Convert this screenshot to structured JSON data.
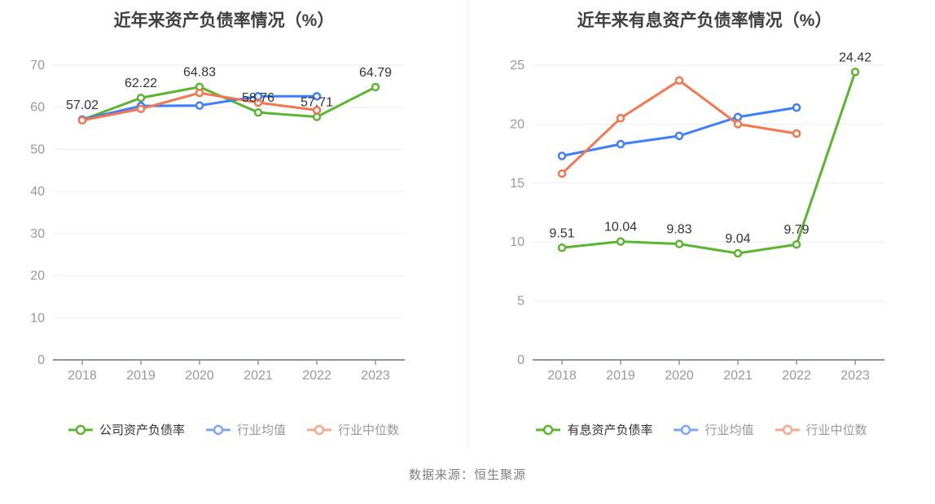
{
  "page": {
    "source_note": "数据来源：恒生聚源"
  },
  "style": {
    "background": "#ffffff",
    "grid_line": "#e9eef6",
    "axis_line": "#8f959e",
    "tick_label": "#999999",
    "title_color": "#404040",
    "data_label_color": "#333333",
    "divider": "#ececec",
    "source_color": "#808080",
    "marker_fill": "#ffffff"
  },
  "chart_data": [
    {
      "type": "line",
      "title": "近年来资产负债率情况（%）",
      "categories": [
        "2018",
        "2019",
        "2020",
        "2021",
        "2022",
        "2023"
      ],
      "ylim": [
        0,
        70
      ],
      "ytick_step": 10,
      "grid": true,
      "legend_position": "bottom",
      "series": [
        {
          "name": "公司资产负债率",
          "values": [
            57.02,
            62.22,
            64.83,
            58.76,
            57.71,
            64.79
          ],
          "color": "#5cb531",
          "legend_color": "#5cb531",
          "legend_text_color": "#333333",
          "show_labels": true
        },
        {
          "name": "行业均值",
          "values": [
            57.1,
            60.3,
            60.4,
            62.6,
            62.6,
            null
          ],
          "color": "#3d7efb",
          "legend_color": "#7ea6f8",
          "legend_text_color": "#999999",
          "show_labels": false
        },
        {
          "name": "行业中位数",
          "values": [
            56.9,
            59.6,
            63.4,
            61.1,
            59.3,
            null
          ],
          "color": "#f3774e",
          "legend_color": "#f8a98c",
          "legend_text_color": "#999999",
          "show_labels": false
        }
      ]
    },
    {
      "type": "line",
      "title": "近年来有息资产负债率情况（%）",
      "categories": [
        "2018",
        "2019",
        "2020",
        "2021",
        "2022",
        "2023"
      ],
      "ylim": [
        0,
        25
      ],
      "ytick_step": 5,
      "grid": true,
      "legend_position": "bottom",
      "series": [
        {
          "name": "有息资产负债率",
          "values": [
            9.51,
            10.04,
            9.83,
            9.04,
            9.79,
            24.42
          ],
          "color": "#5cb531",
          "legend_color": "#5cb531",
          "legend_text_color": "#333333",
          "show_labels": true
        },
        {
          "name": "行业均值",
          "values": [
            17.3,
            18.3,
            19.0,
            20.6,
            21.4,
            null
          ],
          "color": "#3d7efb",
          "legend_color": "#7ea6f8",
          "legend_text_color": "#999999",
          "show_labels": false
        },
        {
          "name": "行业中位数",
          "values": [
            15.8,
            20.5,
            23.7,
            20.0,
            19.2,
            null
          ],
          "color": "#f3774e",
          "legend_color": "#f8a98c",
          "legend_text_color": "#999999",
          "show_labels": false
        }
      ]
    }
  ]
}
